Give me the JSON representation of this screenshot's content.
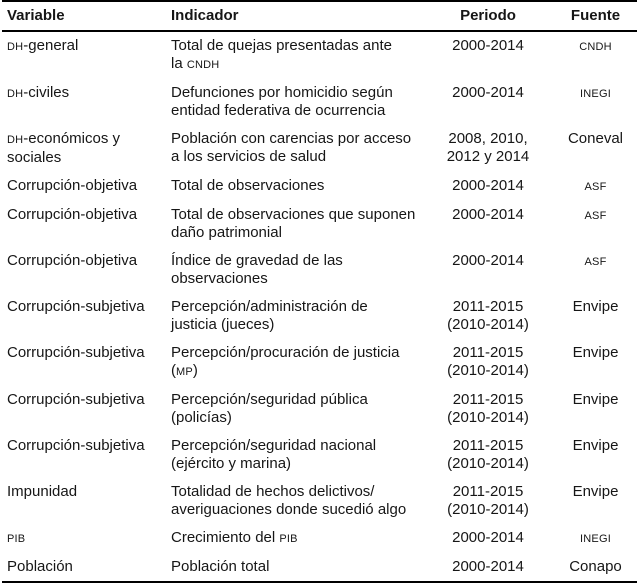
{
  "colors": {
    "text": "#161616",
    "rule": "#000000",
    "background": "#ffffff"
  },
  "table": {
    "headers": [
      {
        "label": "Variable"
      },
      {
        "label": "Indicador"
      },
      {
        "label": "Periodo"
      },
      {
        "label": "Fuente"
      }
    ],
    "rows": [
      {
        "variable": [
          {
            "t": "DH",
            "sc": true
          },
          {
            "t": "-general"
          }
        ],
        "indicador": [
          {
            "t": "Total de quejas presentadas ante\nla "
          },
          {
            "t": "CNDH",
            "sc": true
          }
        ],
        "periodo": "2000-2014",
        "fuente": [
          {
            "t": "CNDH",
            "sc": true
          }
        ]
      },
      {
        "variable": [
          {
            "t": "DH",
            "sc": true
          },
          {
            "t": "-civiles"
          }
        ],
        "indicador": [
          {
            "t": "Defunciones por homicidio según\nentidad federativa de ocurrencia"
          }
        ],
        "periodo": "2000-2014",
        "fuente": [
          {
            "t": "INEGI",
            "sc": true
          }
        ]
      },
      {
        "variable": [
          {
            "t": "DH",
            "sc": true
          },
          {
            "t": "-económicos y\nsociales"
          }
        ],
        "indicador": [
          {
            "t": "Población con carencias por acceso\na los servicios de salud"
          }
        ],
        "periodo": "2008, 2010,\n2012 y 2014",
        "fuente": [
          {
            "t": "Coneval"
          }
        ]
      },
      {
        "variable": [
          {
            "t": "Corrupción-objetiva"
          }
        ],
        "indicador": [
          {
            "t": "Total de observaciones"
          }
        ],
        "periodo": "2000-2014",
        "fuente": [
          {
            "t": "ASF",
            "sc": true
          }
        ]
      },
      {
        "variable": [
          {
            "t": "Corrupción-objetiva"
          }
        ],
        "indicador": [
          {
            "t": "Total de observaciones que suponen\ndaño patrimonial"
          }
        ],
        "periodo": "2000-2014",
        "fuente": [
          {
            "t": "ASF",
            "sc": true
          }
        ]
      },
      {
        "variable": [
          {
            "t": "Corrupción-objetiva"
          }
        ],
        "indicador": [
          {
            "t": "Índice de gravedad de las\nobservaciones"
          }
        ],
        "periodo": "2000-2014",
        "fuente": [
          {
            "t": "ASF",
            "sc": true
          }
        ]
      },
      {
        "variable": [
          {
            "t": "Corrupción-subjetiva"
          }
        ],
        "indicador": [
          {
            "t": "Percepción/administración de\njusticia (jueces)"
          }
        ],
        "periodo": "2011-2015\n(2010-2014)",
        "fuente": [
          {
            "t": "Envipe"
          }
        ]
      },
      {
        "variable": [
          {
            "t": "Corrupción-subjetiva"
          }
        ],
        "indicador": [
          {
            "t": "Percepción/procuración de justicia\n("
          },
          {
            "t": "MP",
            "sc": true
          },
          {
            "t": ")"
          }
        ],
        "periodo": "2011-2015\n(2010-2014)",
        "fuente": [
          {
            "t": "Envipe"
          }
        ]
      },
      {
        "variable": [
          {
            "t": "Corrupción-subjetiva"
          }
        ],
        "indicador": [
          {
            "t": "Percepción/seguridad pública\n(policías)"
          }
        ],
        "periodo": "2011-2015\n(2010-2014)",
        "fuente": [
          {
            "t": "Envipe"
          }
        ]
      },
      {
        "variable": [
          {
            "t": "Corrupción-subjetiva"
          }
        ],
        "indicador": [
          {
            "t": "Percepción/seguridad nacional\n(ejército y marina)"
          }
        ],
        "periodo": "2011-2015\n(2010-2014)",
        "fuente": [
          {
            "t": "Envipe"
          }
        ]
      },
      {
        "variable": [
          {
            "t": "Impunidad"
          }
        ],
        "indicador": [
          {
            "t": "Totalidad de hechos delictivos/\naveriguaciones donde sucedió algo"
          }
        ],
        "periodo": "2011-2015\n(2010-2014)",
        "fuente": [
          {
            "t": "Envipe"
          }
        ]
      },
      {
        "variable": [
          {
            "t": "PIB",
            "sc": true
          }
        ],
        "indicador": [
          {
            "t": "Crecimiento del "
          },
          {
            "t": "PIB",
            "sc": true
          }
        ],
        "periodo": "2000-2014",
        "fuente": [
          {
            "t": "INEGI",
            "sc": true
          }
        ]
      },
      {
        "variable": [
          {
            "t": "Población"
          }
        ],
        "indicador": [
          {
            "t": "Población total"
          }
        ],
        "periodo": "2000-2014",
        "fuente": [
          {
            "t": "Conapo"
          }
        ]
      }
    ]
  }
}
